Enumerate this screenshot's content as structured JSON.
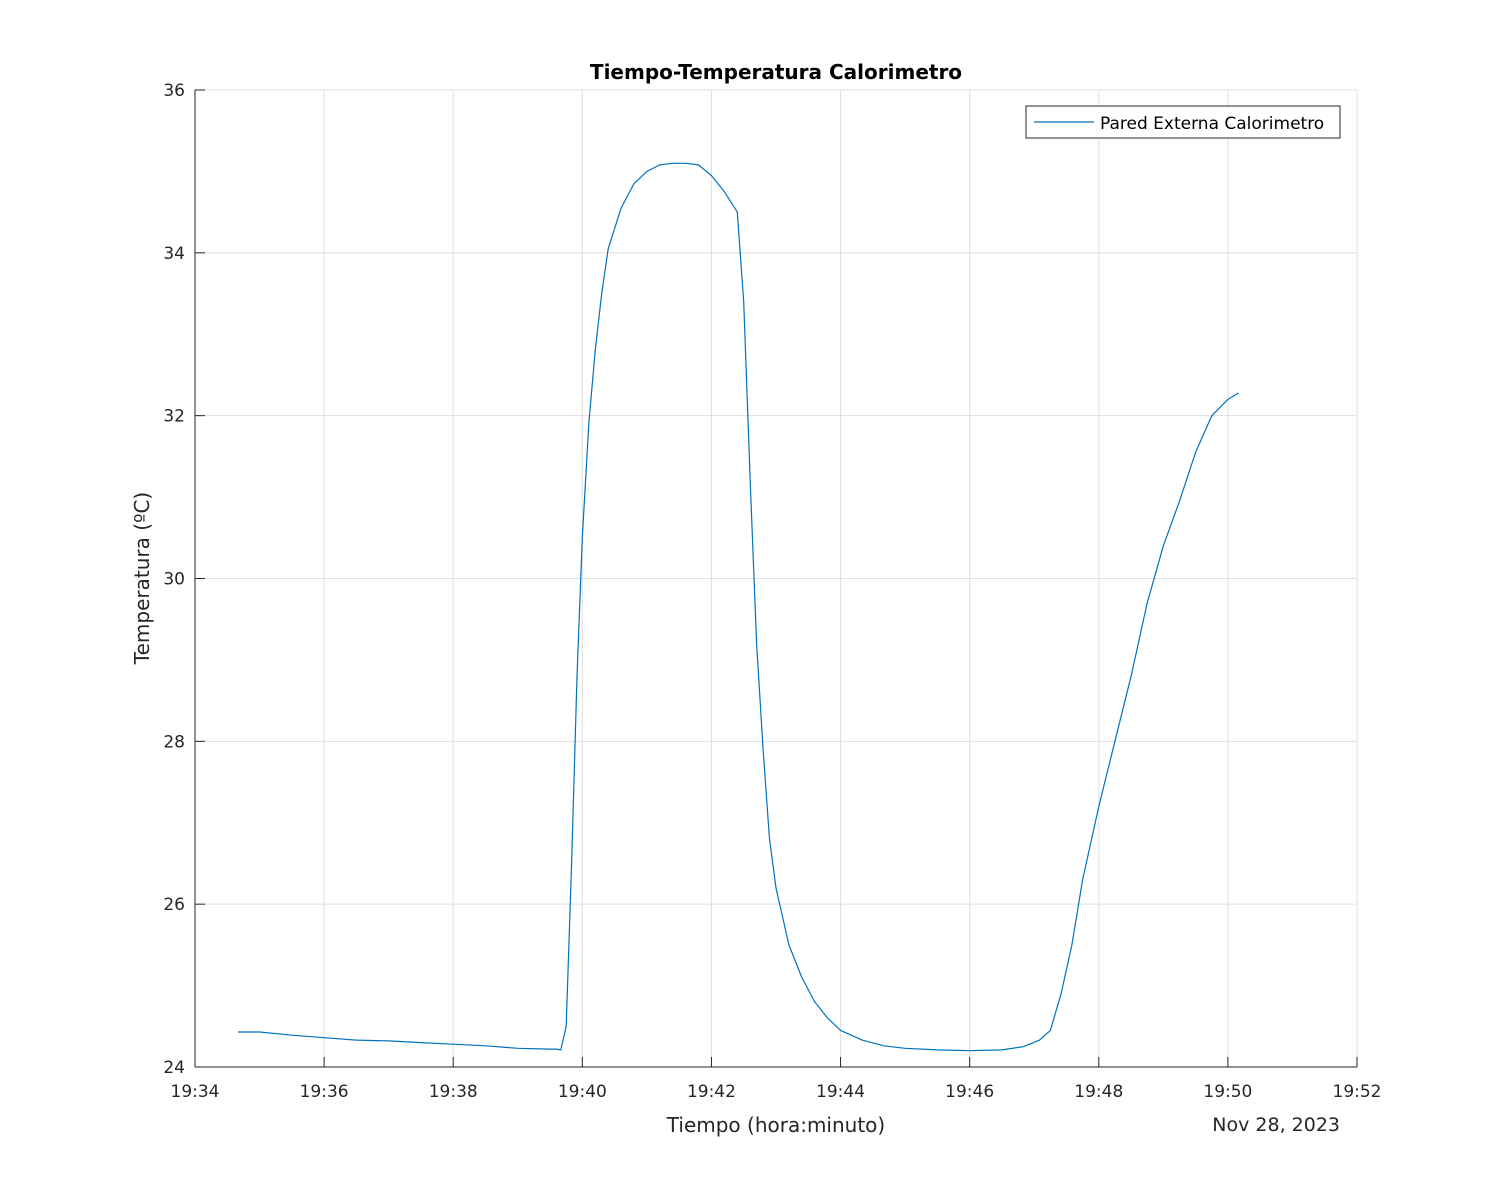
{
  "chart_data": {
    "type": "line",
    "title": "Tiempo-Temperatura Calorimetro",
    "xlabel": "Tiempo (hora:minuto)",
    "ylabel": "Temperatura (ºC)",
    "date_label": "Nov 28, 2023",
    "x_ticks": [
      "19:34",
      "19:36",
      "19:38",
      "19:40",
      "19:42",
      "19:44",
      "19:46",
      "19:48",
      "19:50",
      "19:52"
    ],
    "y_ticks": [
      24,
      26,
      28,
      30,
      32,
      34,
      36
    ],
    "xlim": [
      "19:34",
      "19:52"
    ],
    "ylim": [
      24,
      36
    ],
    "grid": true,
    "legend_position": "top-right",
    "colors": {
      "series": "#0072bd",
      "grid": "#dfdfdf",
      "axis": "#262626"
    },
    "series": [
      {
        "name": "Pared Externa Calorimetro",
        "x": [
          "19:34:40",
          "19:35:00",
          "19:35:30",
          "19:36:00",
          "19:36:30",
          "19:37:00",
          "19:37:30",
          "19:38:00",
          "19:38:30",
          "19:39:00",
          "19:39:30",
          "19:39:36",
          "19:39:40",
          "19:39:45",
          "19:39:50",
          "19:39:55",
          "19:40:00",
          "19:40:06",
          "19:40:12",
          "19:40:18",
          "19:40:24",
          "19:40:36",
          "19:40:48",
          "19:41:00",
          "19:41:12",
          "19:41:24",
          "19:41:36",
          "19:41:48",
          "19:42:00",
          "19:42:12",
          "19:42:24",
          "19:42:30",
          "19:42:36",
          "19:42:42",
          "19:42:48",
          "19:42:54",
          "19:43:00",
          "19:43:12",
          "19:43:24",
          "19:43:36",
          "19:43:48",
          "19:44:00",
          "19:44:20",
          "19:44:40",
          "19:45:00",
          "19:45:30",
          "19:46:00",
          "19:46:30",
          "19:46:50",
          "19:47:05",
          "19:47:15",
          "19:47:25",
          "19:47:35",
          "19:47:45",
          "19:48:00",
          "19:48:15",
          "19:48:30",
          "19:48:45",
          "19:49:00",
          "19:49:15",
          "19:49:30",
          "19:49:45",
          "19:50:00",
          "19:50:10"
        ],
        "y": [
          24.43,
          24.43,
          24.39,
          24.36,
          24.33,
          24.32,
          24.3,
          24.28,
          24.26,
          24.23,
          24.22,
          24.22,
          24.21,
          24.5,
          26.5,
          28.8,
          30.5,
          31.9,
          32.8,
          33.5,
          34.05,
          34.55,
          34.85,
          35.0,
          35.08,
          35.1,
          35.1,
          35.08,
          34.95,
          34.75,
          34.5,
          33.4,
          31.2,
          29.2,
          27.9,
          26.8,
          26.2,
          25.5,
          25.1,
          24.8,
          24.6,
          24.45,
          24.33,
          24.26,
          24.23,
          24.21,
          24.2,
          24.21,
          24.25,
          24.33,
          24.45,
          24.9,
          25.5,
          26.3,
          27.2,
          28.0,
          28.8,
          29.7,
          30.4,
          30.95,
          31.55,
          32.0,
          32.2,
          32.28
        ]
      }
    ]
  }
}
